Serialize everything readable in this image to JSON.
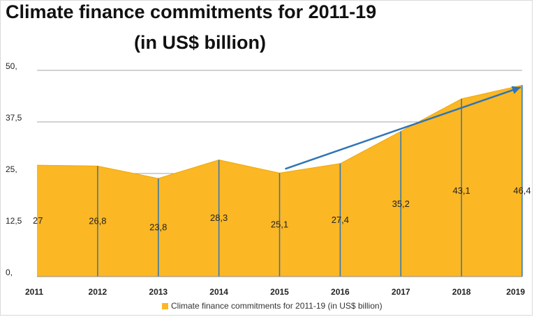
{
  "chart_data": {
    "type": "area",
    "title": "Climate finance commitments for 2011-19",
    "subtitle": "(in US$ billion)",
    "categories": [
      "2011",
      "2012",
      "2013",
      "2014",
      "2015",
      "2016",
      "2017",
      "2018",
      "2019"
    ],
    "series": [
      {
        "name": "Climate finance commitments for 2011-19 (in US$ billion)",
        "values": [
          27,
          26.8,
          23.8,
          28.3,
          25.1,
          27.4,
          35.2,
          43.1,
          46.4
        ],
        "labels": [
          "27",
          "26,8",
          "23,8",
          "28,3",
          "25,1",
          "27,4",
          "35,2",
          "43,1",
          "46,4"
        ],
        "color": "#fbb724"
      }
    ],
    "ylim": [
      0,
      50
    ],
    "yticks": [
      0,
      12.5,
      25,
      37.5,
      50
    ],
    "ytick_labels": [
      "0,",
      "12,5",
      "25,",
      "37,5",
      "50,"
    ],
    "grid": true,
    "legend_position": "bottom",
    "trend_arrow": {
      "from": [
        2015,
        25.1
      ],
      "to": [
        2019,
        46.4
      ],
      "color": "#2e75b6"
    },
    "drop_line_color": "#2e75b6",
    "gridline_color": "#a6a6a6"
  }
}
